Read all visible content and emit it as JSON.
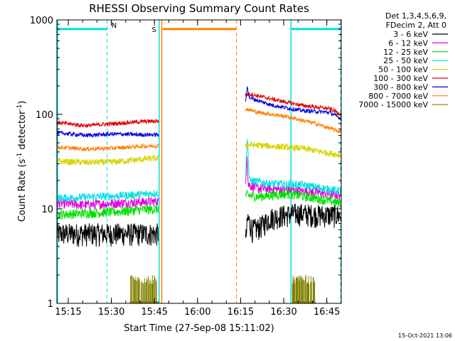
{
  "chart_data": {
    "type": "line",
    "title": "RHESSI Observing Summary Count Rates",
    "xlabel": "Start Time (27-Sep-08 15:11:02)",
    "ylabel_main": "Count Rate (s",
    "ylabel_sup1": "-1",
    "ylabel_mid": " detector",
    "ylabel_sup2": "-1",
    "ylabel_end": ")",
    "y_scale": "log",
    "ylim": [
      1,
      1000
    ],
    "xlim_minutes": [
      0,
      99
    ],
    "x_ticks": [
      {
        "label": "15:15",
        "t": 3.97
      },
      {
        "label": "15:30",
        "t": 18.97
      },
      {
        "label": "15:45",
        "t": 33.97
      },
      {
        "label": "16:00",
        "t": 48.97
      },
      {
        "label": "16:15",
        "t": 63.97
      },
      {
        "label": "16:30",
        "t": 78.97
      },
      {
        "label": "16:45",
        "t": 93.97
      }
    ],
    "y_ticks": [
      {
        "label": "1",
        "v": 1
      },
      {
        "label": "10",
        "v": 10
      },
      {
        "label": "100",
        "v": 100
      },
      {
        "label": "1000",
        "v": 1000
      }
    ],
    "legend_header": [
      "Det 1,3,4,5,6,9,",
      "FDecim 2, Att 0"
    ],
    "legend_position": "right",
    "series": [
      {
        "name": "3 - 6 keV",
        "color": "#000000",
        "segments": [
          [
            [
              0,
              5.5
            ],
            [
              35.5,
              5.5
            ]
          ],
          [
            [
              65.7,
              4.5
            ],
            [
              66.5,
              8
            ],
            [
              68,
              6
            ],
            [
              71,
              6.5
            ],
            [
              74,
              8
            ],
            [
              78,
              8.5
            ],
            [
              84,
              9
            ],
            [
              90,
              8.7
            ],
            [
              99,
              8.6
            ]
          ]
        ]
      },
      {
        "name": "6 - 12 keV",
        "color": "#e000e0",
        "segments": [
          [
            [
              0,
              11.5
            ],
            [
              10,
              11
            ],
            [
              20,
              11.5
            ],
            [
              30,
              11.8
            ],
            [
              35.5,
              12
            ]
          ],
          [
            [
              65.7,
              18
            ],
            [
              66.2,
              40
            ],
            [
              66.6,
              18
            ],
            [
              70,
              16.5
            ],
            [
              80,
              16
            ],
            [
              90,
              15
            ],
            [
              99,
              14
            ]
          ]
        ]
      },
      {
        "name": "12 - 25 keV",
        "color": "#00e000",
        "segments": [
          [
            [
              0,
              8.7
            ],
            [
              10,
              9
            ],
            [
              20,
              9.3
            ],
            [
              30,
              9.8
            ],
            [
              35.5,
              10
            ]
          ],
          [
            [
              65.7,
              14
            ],
            [
              70,
              13.5
            ],
            [
              80,
              14.5
            ],
            [
              90,
              13
            ],
            [
              99,
              11.5
            ]
          ]
        ]
      },
      {
        "name": "25 - 50 keV",
        "color": "#00e0e0",
        "segments": [
          [
            [
              0,
              13
            ],
            [
              10,
              13.3
            ],
            [
              20,
              13.7
            ],
            [
              30,
              14.3
            ],
            [
              35.5,
              14.8
            ]
          ],
          [
            [
              65.7,
              21
            ],
            [
              66.3,
              60
            ],
            [
              67,
              20
            ],
            [
              75,
              18.5
            ],
            [
              85,
              18
            ],
            [
              99,
              15.5
            ]
          ]
        ]
      },
      {
        "name": "50 - 100 keV",
        "color": "#d4d400",
        "segments": [
          [
            [
              0,
              32
            ],
            [
              10,
              31
            ],
            [
              20,
              31.5
            ],
            [
              30,
              33.5
            ],
            [
              35.5,
              34.5
            ]
          ],
          [
            [
              65.7,
              48
            ],
            [
              75,
              46
            ],
            [
              85,
              44
            ],
            [
              99,
              37
            ]
          ]
        ]
      },
      {
        "name": "100 - 300 keV",
        "color": "#e00000",
        "segments": [
          [
            [
              0,
              82
            ],
            [
              10,
              76
            ],
            [
              20,
              80
            ],
            [
              30,
              84
            ],
            [
              35.5,
              85
            ]
          ],
          [
            [
              65.7,
              160
            ],
            [
              67,
              165
            ],
            [
              75,
              145
            ],
            [
              85,
              125
            ],
            [
              95,
              115
            ],
            [
              99,
              100
            ]
          ]
        ]
      },
      {
        "name": "300 - 800 keV",
        "color": "#0000e0",
        "segments": [
          [
            [
              0,
              64
            ],
            [
              10,
              60
            ],
            [
              20,
              62
            ],
            [
              30,
              61
            ],
            [
              35.5,
              61
            ]
          ],
          [
            [
              65.7,
              130
            ],
            [
              66.3,
              200
            ],
            [
              67,
              150
            ],
            [
              75,
              125
            ],
            [
              85,
              110
            ],
            [
              95,
              105
            ],
            [
              99,
              90
            ]
          ]
        ]
      },
      {
        "name": "800 - 7000 keV",
        "color": "#ff8000",
        "segments": [
          [
            [
              0,
              45
            ],
            [
              10,
              43
            ],
            [
              20,
              44
            ],
            [
              30,
              46
            ],
            [
              35.5,
              46.5
            ]
          ],
          [
            [
              65.7,
              115
            ],
            [
              70,
              105
            ],
            [
              80,
              95
            ],
            [
              90,
              80
            ],
            [
              99,
              65
            ]
          ]
        ]
      },
      {
        "name": "7000 - 15000 keV",
        "color": "#808000",
        "segments": []
      }
    ],
    "annotations": {
      "saa": {
        "label": "S",
        "color": "#ff8000",
        "t0": 36.5,
        "t1": 62.5,
        "level": 800
      },
      "night": {
        "label": "N",
        "color": "#00e0e0",
        "t_left_edge": 0,
        "t_n": 17.5,
        "t_right_start": 81.5,
        "t_right_end": 99
      }
    }
  },
  "timestamp": "15-Oct-2021 13:06"
}
